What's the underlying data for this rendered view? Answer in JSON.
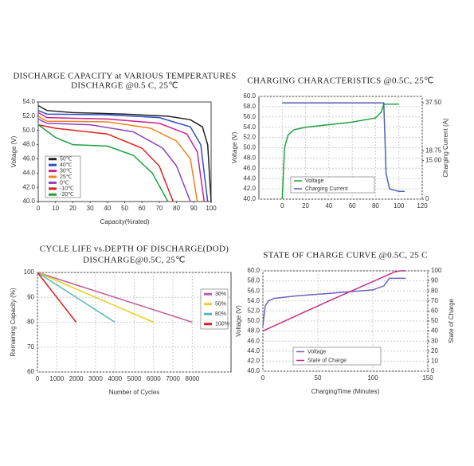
{
  "chart_data": [
    {
      "type": "line",
      "title": "DISCHARGE CAPACITY at VARIOUS TEMPERATURES",
      "subtitle": "DISCHARGE @0.5 C, 25℃",
      "x_label": "Capacity(%rated)",
      "y_label": "Voltage (V)",
      "grid": false,
      "xlim": [
        0,
        100
      ],
      "xticks": [
        0,
        10,
        20,
        30,
        40,
        50,
        60,
        70,
        80,
        90,
        100
      ],
      "ylim": [
        40,
        54
      ],
      "yticks": [
        {
          "value": 40,
          "label": "40.0"
        },
        {
          "value": 42,
          "label": "42.0"
        },
        {
          "value": 44,
          "label": "44.0"
        },
        {
          "value": 46,
          "label": "46.0"
        },
        {
          "value": 48,
          "label": "48.0"
        },
        {
          "value": 50,
          "label": "50.0"
        },
        {
          "value": 52,
          "label": "52.0"
        },
        {
          "value": 54,
          "label": "54.0"
        }
      ],
      "series": [
        {
          "name": "50℃",
          "color": "#222222",
          "x": [
            0,
            5,
            20,
            50,
            75,
            88,
            95,
            98,
            100
          ],
          "values": [
            53.5,
            52.8,
            52.5,
            52.3,
            52.0,
            51.5,
            50.5,
            48,
            40
          ]
        },
        {
          "name": "40℃",
          "color": "#3050c0",
          "x": [
            0,
            5,
            40,
            70,
            88,
            94,
            98
          ],
          "values": [
            52.8,
            52.3,
            52.2,
            51.8,
            50.5,
            48,
            40
          ]
        },
        {
          "name": "30℃",
          "color": "#d02090",
          "x": [
            0,
            5,
            40,
            70,
            86,
            92,
            96
          ],
          "values": [
            52.5,
            51.8,
            51.6,
            51.0,
            49.5,
            47,
            40
          ]
        },
        {
          "name": "25℃",
          "color": "#f08020",
          "x": [
            0,
            5,
            40,
            65,
            80,
            88,
            92
          ],
          "values": [
            52.0,
            51.3,
            51.2,
            50.3,
            48.5,
            46,
            40
          ]
        },
        {
          "name": "0℃",
          "color": "#9040c0",
          "x": [
            0,
            5,
            30,
            55,
            72,
            80,
            88
          ],
          "values": [
            51.6,
            51.0,
            50.8,
            49.8,
            47.5,
            45,
            40
          ]
        },
        {
          "name": "-10℃",
          "color": "#e02020",
          "x": [
            0,
            10,
            40,
            60,
            70,
            78
          ],
          "values": [
            50.8,
            50.3,
            49.5,
            47.5,
            45,
            40
          ]
        },
        {
          "name": "-20℃",
          "color": "#20a040",
          "x": [
            0,
            10,
            20,
            40,
            55,
            66,
            75
          ],
          "values": [
            50.8,
            49,
            48,
            47.8,
            46.5,
            44,
            40
          ]
        }
      ]
    },
    {
      "type": "line",
      "title": "CHARGING CHARACTERISTICS @0.5C, 25℃",
      "y_label": "Voltage (V)",
      "y2_label": "Charging Current (A)",
      "grid": true,
      "xlim": [
        -20,
        120
      ],
      "xticks": [
        0,
        20,
        40,
        60,
        80,
        100,
        120
      ],
      "ylim": [
        40,
        60
      ],
      "yticks": [
        {
          "value": 40,
          "label": "40.0"
        },
        {
          "value": 42,
          "label": "42.0"
        },
        {
          "value": 44,
          "label": "44.0"
        },
        {
          "value": 46,
          "label": "46.0"
        },
        {
          "value": 48,
          "label": "48.0"
        },
        {
          "value": 50,
          "label": "50.0"
        },
        {
          "value": 52,
          "label": "52.0"
        },
        {
          "value": 54,
          "label": "54.0"
        },
        {
          "value": 56,
          "label": "56.0"
        },
        {
          "value": 58,
          "label": "58.0"
        },
        {
          "value": 60,
          "label": "60.0"
        }
      ],
      "y2lim": [
        0,
        40
      ],
      "y2ticks": [
        0,
        {
          "value": 15,
          "label": "15.00"
        },
        {
          "value": 18.75,
          "label": "18.75"
        },
        {
          "value": 37.5,
          "label": "37.50"
        }
      ],
      "series": [
        {
          "name": "Voltage",
          "color": "#20a040",
          "x": [
            0,
            2,
            5,
            10,
            20,
            40,
            60,
            80,
            85,
            87,
            100
          ],
          "values": [
            40,
            50,
            52.5,
            53.5,
            54,
            54.5,
            55,
            55.8,
            57,
            58.5,
            58.5
          ]
        },
        {
          "name": "Charging Current",
          "color": "#5060b0",
          "axis": "y2",
          "x": [
            0,
            87,
            88,
            89,
            92,
            100,
            105
          ],
          "values": [
            37.5,
            37.5,
            25,
            10,
            4,
            3,
            3
          ]
        }
      ]
    },
    {
      "type": "line",
      "title": "CYCLE LIFE vs.DEPTH OF DISCHARGE(DOD)",
      "subtitle": "DISCHARGE@0.5C, 25℃",
      "x_label": "Number of Cycles",
      "y_label": "Remaining Capacity (%)",
      "grid": true,
      "xlim": [
        0,
        10000
      ],
      "xticks": [
        0,
        1000,
        2000,
        3000,
        4000,
        5000,
        6000,
        7000,
        8000
      ],
      "ylim": [
        60,
        100
      ],
      "yticks": [
        60,
        70,
        80,
        90,
        100
      ],
      "series": [
        {
          "name": "30%",
          "color": "#c06090",
          "x": [
            0,
            8000
          ],
          "values": [
            100,
            80
          ]
        },
        {
          "name": "50%",
          "color": "#e6d020",
          "x": [
            0,
            6000
          ],
          "values": [
            100,
            80
          ]
        },
        {
          "name": "80%",
          "color": "#5bb8b8",
          "x": [
            0,
            4000
          ],
          "values": [
            100,
            80
          ]
        },
        {
          "name": "100%",
          "color": "#cc2222",
          "x": [
            0,
            2000
          ],
          "values": [
            100,
            80
          ]
        }
      ]
    },
    {
      "type": "line",
      "title": "STATE OF CHARGE CURVE @0.5C, 25 C",
      "x_label": "ChargingTime (Minutes)",
      "y_label": "Voltage (V)",
      "y2_label": "State of Charge",
      "grid": true,
      "xlim": [
        0,
        150
      ],
      "xticks": [
        0,
        50,
        100,
        150
      ],
      "ylim": [
        40,
        60
      ],
      "yticks": [
        {
          "value": 40,
          "label": "40.0"
        },
        {
          "value": 42,
          "label": "42.0"
        },
        {
          "value": 44,
          "label": "44.0"
        },
        {
          "value": 46,
          "label": "46.0"
        },
        {
          "value": 48,
          "label": "48.0"
        },
        {
          "value": 50,
          "label": "50.0"
        },
        {
          "value": 52,
          "label": "52.0"
        },
        {
          "value": 54,
          "label": "54.0"
        },
        {
          "value": 56,
          "label": "56.0"
        },
        {
          "value": 58,
          "label": "58.0"
        },
        {
          "value": 60,
          "label": "60.0"
        }
      ],
      "y2lim": [
        0,
        100
      ],
      "y2ticks": [
        0,
        10,
        20,
        30,
        40,
        50,
        60,
        70,
        80,
        90,
        100
      ],
      "series": [
        {
          "name": "Voltage",
          "color": "#7060c0",
          "x": [
            0,
            2,
            5,
            10,
            30,
            60,
            100,
            110,
            115,
            130
          ],
          "values": [
            49,
            53,
            54,
            54.5,
            55,
            55.5,
            56.2,
            57,
            58.5,
            58.5
          ]
        },
        {
          "name": "State of Charge",
          "color": "#c03080",
          "axis": "y2",
          "x": [
            0,
            60,
            120,
            125,
            130
          ],
          "values": [
            40,
            70,
            99,
            100,
            100
          ]
        }
      ]
    }
  ]
}
